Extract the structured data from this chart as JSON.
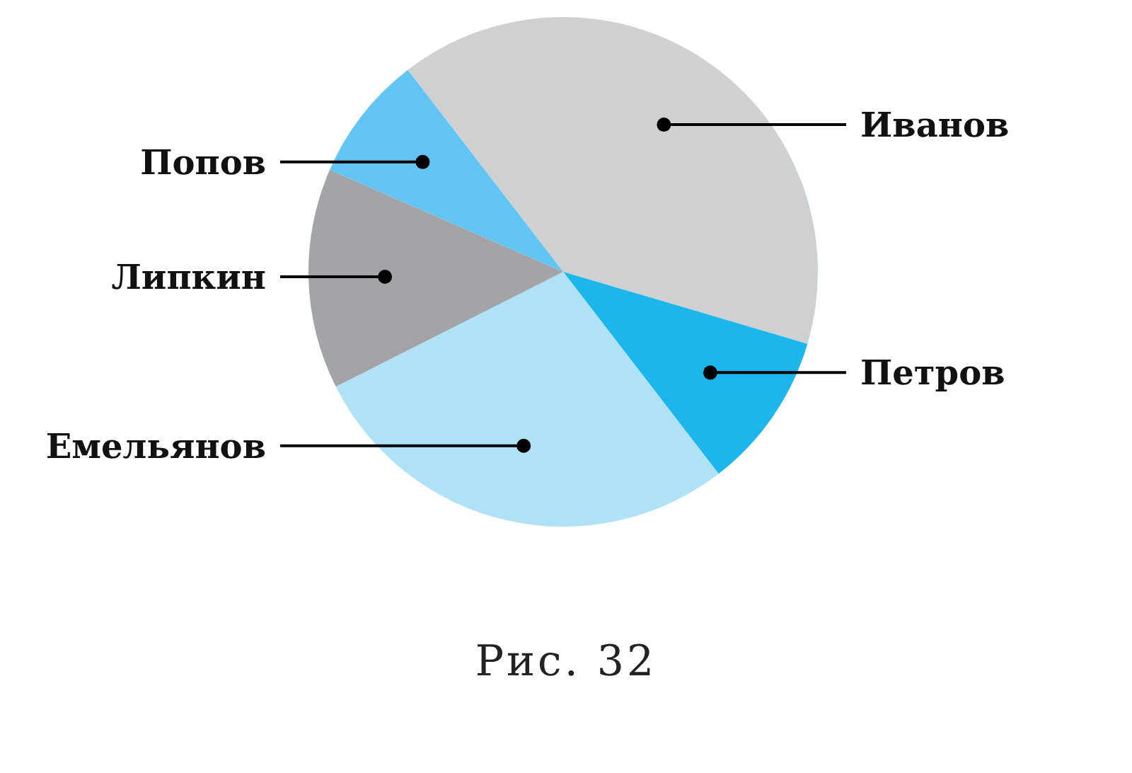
{
  "chart_data": {
    "type": "pie",
    "categories": [
      "Иванов",
      "Петров",
      "Емельянов",
      "Липкин",
      "Попов"
    ],
    "values": [
      40,
      10,
      28,
      14,
      8
    ],
    "colors": [
      "#cfd0d2",
      "#1cb5ec",
      "#b0e2f7",
      "#a3a4a7",
      "#62c4f2"
    ],
    "annotations": [
      "Рис. 32"
    ],
    "legend": false
  }
}
